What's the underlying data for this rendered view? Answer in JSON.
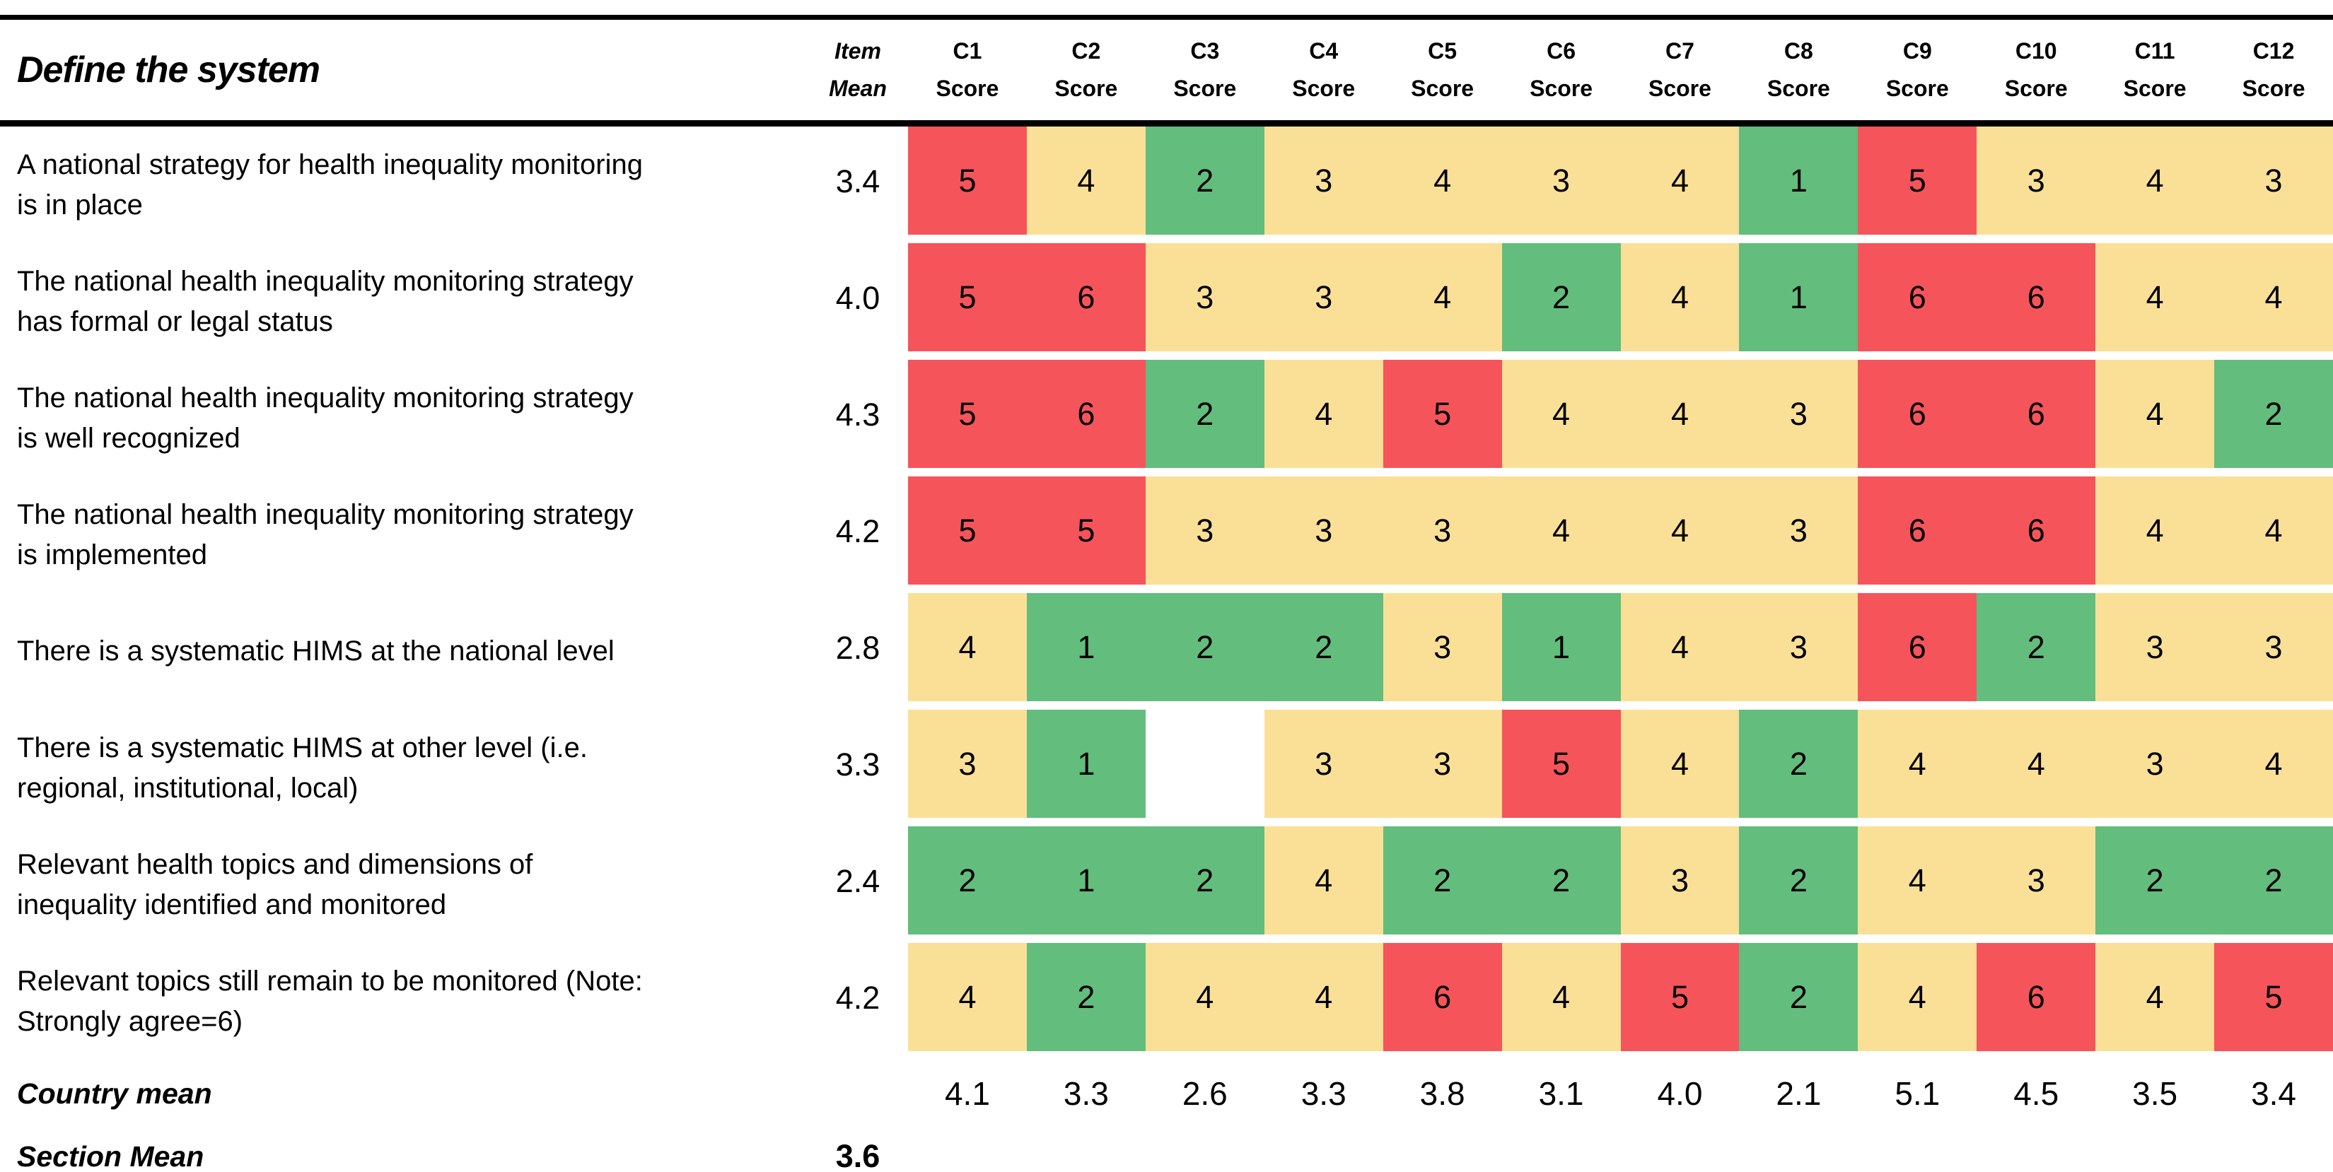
{
  "title": "Define the system",
  "columns": {
    "item_mean_line1": "Item",
    "item_mean_line2": "Mean",
    "score_label": "Score",
    "countries": [
      "C1",
      "C2",
      "C3",
      "C4",
      "C5",
      "C6",
      "C7",
      "C8",
      "C9",
      "C10",
      "C11",
      "C12"
    ]
  },
  "colors": {
    "red": "#F5545B",
    "yellow": "#FAE096",
    "green": "#63BD7D",
    "blank": "#FFFFFF"
  },
  "rows": [
    {
      "label": "A national strategy for health inequality monitoring is in place",
      "mean": "3.4",
      "scores": [
        {
          "v": "5",
          "c": "red"
        },
        {
          "v": "4",
          "c": "yellow"
        },
        {
          "v": "2",
          "c": "green"
        },
        {
          "v": "3",
          "c": "yellow"
        },
        {
          "v": "4",
          "c": "yellow"
        },
        {
          "v": "3",
          "c": "yellow"
        },
        {
          "v": "4",
          "c": "yellow"
        },
        {
          "v": "1",
          "c": "green"
        },
        {
          "v": "5",
          "c": "red"
        },
        {
          "v": "3",
          "c": "yellow"
        },
        {
          "v": "4",
          "c": "yellow"
        },
        {
          "v": "3",
          "c": "yellow"
        }
      ]
    },
    {
      "label": "The national health inequality monitoring strategy has formal or legal status",
      "mean": "4.0",
      "scores": [
        {
          "v": "5",
          "c": "red"
        },
        {
          "v": "6",
          "c": "red"
        },
        {
          "v": "3",
          "c": "yellow"
        },
        {
          "v": "3",
          "c": "yellow"
        },
        {
          "v": "4",
          "c": "yellow"
        },
        {
          "v": "2",
          "c": "green"
        },
        {
          "v": "4",
          "c": "yellow"
        },
        {
          "v": "1",
          "c": "green"
        },
        {
          "v": "6",
          "c": "red"
        },
        {
          "v": "6",
          "c": "red"
        },
        {
          "v": "4",
          "c": "yellow"
        },
        {
          "v": "4",
          "c": "yellow"
        }
      ]
    },
    {
      "label": "The national health inequality monitoring strategy is well recognized",
      "mean": "4.3",
      "scores": [
        {
          "v": "5",
          "c": "red"
        },
        {
          "v": "6",
          "c": "red"
        },
        {
          "v": "2",
          "c": "green"
        },
        {
          "v": "4",
          "c": "yellow"
        },
        {
          "v": "5",
          "c": "red"
        },
        {
          "v": "4",
          "c": "yellow"
        },
        {
          "v": "4",
          "c": "yellow"
        },
        {
          "v": "3",
          "c": "yellow"
        },
        {
          "v": "6",
          "c": "red"
        },
        {
          "v": "6",
          "c": "red"
        },
        {
          "v": "4",
          "c": "yellow"
        },
        {
          "v": "2",
          "c": "green"
        }
      ]
    },
    {
      "label": "The national health inequality monitoring strategy is implemented",
      "mean": "4.2",
      "scores": [
        {
          "v": "5",
          "c": "red"
        },
        {
          "v": "5",
          "c": "red"
        },
        {
          "v": "3",
          "c": "yellow"
        },
        {
          "v": "3",
          "c": "yellow"
        },
        {
          "v": "3",
          "c": "yellow"
        },
        {
          "v": "4",
          "c": "yellow"
        },
        {
          "v": "4",
          "c": "yellow"
        },
        {
          "v": "3",
          "c": "yellow"
        },
        {
          "v": "6",
          "c": "red"
        },
        {
          "v": "6",
          "c": "red"
        },
        {
          "v": "4",
          "c": "yellow"
        },
        {
          "v": "4",
          "c": "yellow"
        }
      ]
    },
    {
      "label": "There is a systematic HIMS at the national level",
      "mean": "2.8",
      "scores": [
        {
          "v": "4",
          "c": "yellow"
        },
        {
          "v": "1",
          "c": "green"
        },
        {
          "v": "2",
          "c": "green"
        },
        {
          "v": "2",
          "c": "green"
        },
        {
          "v": "3",
          "c": "yellow"
        },
        {
          "v": "1",
          "c": "green"
        },
        {
          "v": "4",
          "c": "yellow"
        },
        {
          "v": "3",
          "c": "yellow"
        },
        {
          "v": "6",
          "c": "red"
        },
        {
          "v": "2",
          "c": "green"
        },
        {
          "v": "3",
          "c": "yellow"
        },
        {
          "v": "3",
          "c": "yellow"
        }
      ]
    },
    {
      "label": "There is a systematic HIMS at other level (i.e. regional, institutional, local)",
      "mean": "3.3",
      "scores": [
        {
          "v": "3",
          "c": "yellow"
        },
        {
          "v": "1",
          "c": "green"
        },
        null,
        {
          "v": "3",
          "c": "yellow"
        },
        {
          "v": "3",
          "c": "yellow"
        },
        {
          "v": "5",
          "c": "red"
        },
        {
          "v": "4",
          "c": "yellow"
        },
        {
          "v": "2",
          "c": "green"
        },
        {
          "v": "4",
          "c": "yellow"
        },
        {
          "v": "4",
          "c": "yellow"
        },
        {
          "v": "3",
          "c": "yellow"
        },
        {
          "v": "4",
          "c": "yellow"
        }
      ]
    },
    {
      "label": "Relevant health topics and dimensions of inequality identified and monitored",
      "mean": "2.4",
      "scores": [
        {
          "v": "2",
          "c": "green"
        },
        {
          "v": "1",
          "c": "green"
        },
        {
          "v": "2",
          "c": "green"
        },
        {
          "v": "4",
          "c": "yellow"
        },
        {
          "v": "2",
          "c": "green"
        },
        {
          "v": "2",
          "c": "green"
        },
        {
          "v": "3",
          "c": "yellow"
        },
        {
          "v": "2",
          "c": "green"
        },
        {
          "v": "4",
          "c": "yellow"
        },
        {
          "v": "3",
          "c": "yellow"
        },
        {
          "v": "2",
          "c": "green"
        },
        {
          "v": "2",
          "c": "green"
        }
      ]
    },
    {
      "label": "Relevant topics still remain to be monitored (Note: Strongly agree=6)",
      "mean": "4.2",
      "scores": [
        {
          "v": "4",
          "c": "yellow"
        },
        {
          "v": "2",
          "c": "green"
        },
        {
          "v": "4",
          "c": "yellow"
        },
        {
          "v": "4",
          "c": "yellow"
        },
        {
          "v": "6",
          "c": "red"
        },
        {
          "v": "4",
          "c": "yellow"
        },
        {
          "v": "5",
          "c": "red"
        },
        {
          "v": "2",
          "c": "green"
        },
        {
          "v": "4",
          "c": "yellow"
        },
        {
          "v": "6",
          "c": "red"
        },
        {
          "v": "4",
          "c": "yellow"
        },
        {
          "v": "5",
          "c": "red"
        }
      ]
    }
  ],
  "footer": {
    "country_mean_label": "Country mean",
    "country_means": [
      "4.1",
      "3.3",
      "2.6",
      "3.3",
      "3.8",
      "3.1",
      "4.0",
      "2.1",
      "5.1",
      "4.5",
      "3.5",
      "3.4"
    ],
    "section_mean_label": "Section Mean",
    "section_mean": "3.6"
  },
  "chart_data": {
    "type": "heatmap",
    "title": "Define the system",
    "x_labels": [
      "C1",
      "C2",
      "C3",
      "C4",
      "C5",
      "C6",
      "C7",
      "C8",
      "C9",
      "C10",
      "C11",
      "C12"
    ],
    "y_labels": [
      "A national strategy for health inequality monitoring is in place",
      "The national health inequality monitoring strategy has formal or legal status",
      "The national health inequality monitoring strategy is well recognized",
      "The national health inequality monitoring strategy is implemented",
      "There is a systematic HIMS at the national level",
      "There is a systematic HIMS at other level (i.e. regional, institutional, local)",
      "Relevant health topics and dimensions of inequality identified and monitored",
      "Relevant topics still remain to be monitored (Note: Strongly agree=6)"
    ],
    "values": [
      [
        5,
        4,
        2,
        3,
        4,
        3,
        4,
        1,
        5,
        3,
        4,
        3
      ],
      [
        5,
        6,
        3,
        3,
        4,
        2,
        4,
        1,
        6,
        6,
        4,
        4
      ],
      [
        5,
        6,
        2,
        4,
        5,
        4,
        4,
        3,
        6,
        6,
        4,
        2
      ],
      [
        5,
        5,
        3,
        3,
        3,
        4,
        4,
        3,
        6,
        6,
        4,
        4
      ],
      [
        4,
        1,
        2,
        2,
        3,
        1,
        4,
        3,
        6,
        2,
        3,
        3
      ],
      [
        3,
        1,
        null,
        3,
        3,
        5,
        4,
        2,
        4,
        4,
        3,
        4
      ],
      [
        2,
        1,
        2,
        4,
        2,
        2,
        3,
        2,
        4,
        3,
        2,
        2
      ],
      [
        4,
        2,
        4,
        4,
        6,
        4,
        5,
        2,
        4,
        6,
        4,
        5
      ]
    ],
    "item_means": [
      3.4,
      4.0,
      4.3,
      4.2,
      2.8,
      3.3,
      2.4,
      4.2
    ],
    "country_means": [
      4.1,
      3.3,
      2.6,
      3.3,
      3.8,
      3.1,
      4.0,
      2.1,
      5.1,
      4.5,
      3.5,
      3.4
    ],
    "section_mean": 3.6,
    "color_scale": {
      "low_green": "#63BD7D",
      "mid_yellow": "#FAE096",
      "high_red": "#F5545B"
    },
    "value_range": [
      1,
      6
    ],
    "legend_position": "none",
    "grid": false
  }
}
